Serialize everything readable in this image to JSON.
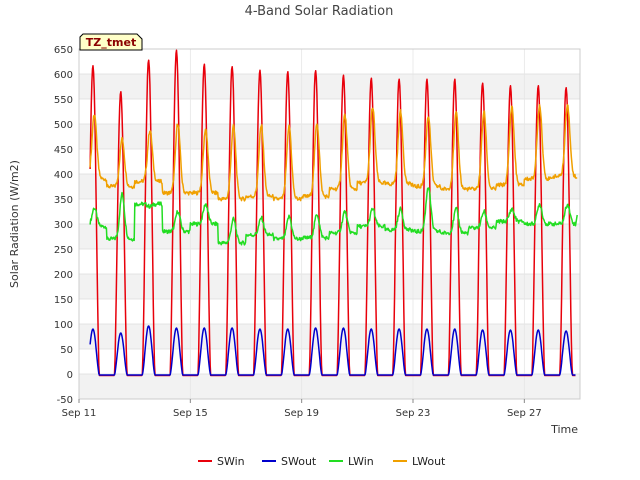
{
  "chart_data": {
    "type": "line",
    "title": "4-Band Solar Radiation",
    "xlabel": "Time",
    "ylabel": "Solar Radiation (W/m2)",
    "badge": "TZ_tmet",
    "ylim": [
      -50,
      650
    ],
    "yticks": [
      -50,
      0,
      50,
      100,
      150,
      200,
      250,
      300,
      350,
      400,
      450,
      500,
      550,
      600,
      650
    ],
    "xlim": [
      "2023-09-11",
      "2023-09-29"
    ],
    "xticks": [
      {
        "day": 11,
        "label": "Sep 11"
      },
      {
        "day": 15,
        "label": "Sep 15"
      },
      {
        "day": 19,
        "label": "Sep 19"
      },
      {
        "day": 23,
        "label": "Sep 23"
      },
      {
        "day": 27,
        "label": "Sep 27"
      }
    ],
    "grid": true,
    "legend_position": "bottom",
    "days": [
      11,
      12,
      13,
      14,
      15,
      16,
      17,
      18,
      19,
      20,
      21,
      22,
      23,
      24,
      25,
      26,
      27,
      28
    ],
    "series": [
      {
        "name": "SWin",
        "color": "#e8000b",
        "daily_peak": [
          617,
          565,
          628,
          648,
          620,
          615,
          608,
          605,
          607,
          598,
          592,
          590,
          590,
          590,
          582,
          577,
          577,
          573
        ],
        "night": -3
      },
      {
        "name": "SWout",
        "color": "#0000cc",
        "daily_peak": [
          90,
          82,
          96,
          92,
          92,
          92,
          90,
          90,
          92,
          92,
          90,
          90,
          90,
          90,
          88,
          88,
          88,
          86
        ],
        "night": -2
      },
      {
        "name": "LWin",
        "color": "#22dd22",
        "daily_base": [
          295,
          270,
          340,
          285,
          300,
          262,
          278,
          270,
          272,
          282,
          295,
          288,
          285,
          282,
          292,
          305,
          300,
          300
        ],
        "daily_peak": [
          332,
          360,
          335,
          325,
          340,
          310,
          312,
          315,
          320,
          325,
          330,
          330,
          375,
          330,
          325,
          330,
          340,
          340
        ],
        "end_value": 318
      },
      {
        "name": "LWout",
        "color": "#f0a000",
        "daily_base": [
          390,
          375,
          385,
          362,
          362,
          350,
          355,
          350,
          355,
          370,
          382,
          380,
          375,
          370,
          370,
          378,
          390,
          395
        ],
        "daily_peak": [
          520,
          470,
          488,
          502,
          490,
          495,
          497,
          495,
          502,
          518,
          533,
          525,
          517,
          522,
          525,
          535,
          538,
          540
        ],
        "end_value": 392
      }
    ]
  }
}
